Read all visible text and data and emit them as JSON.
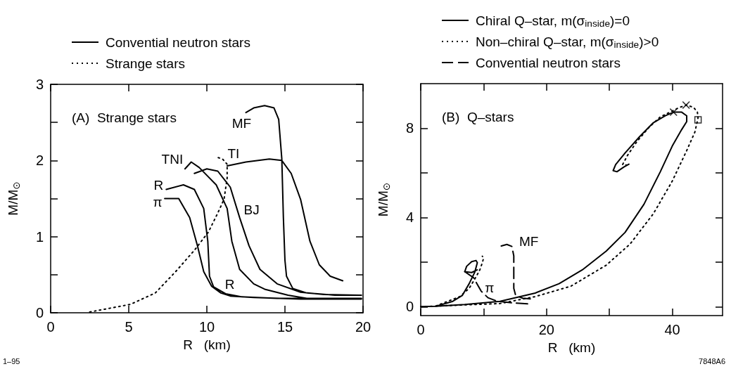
{
  "chart_data": [
    {
      "type": "line",
      "title": "(A)  Strange stars",
      "xlabel": "R   (km)",
      "ylabel": "M/M$_{⊙}$",
      "xlim": [
        0,
        20
      ],
      "ylim": [
        0,
        3
      ],
      "xticks": [
        0,
        5,
        10,
        15,
        20
      ],
      "yticks": [
        0,
        {
          "value": 0.5,
          "label": null
        },
        1,
        {
          "value": 1.5,
          "label": null
        },
        2,
        {
          "value": 2.5,
          "label": null
        },
        3
      ],
      "legend": "top",
      "marker": "none",
      "annotations": [
        "1–95",
        {
          "text": "MF",
          "x": 12.5,
          "y": 2.63
        },
        {
          "text": "TI",
          "x": 11.3,
          "y": 1.93
        },
        {
          "text": "TNI",
          "x": 8.6,
          "y": 1.89
        },
        {
          "text": "R",
          "x": 7.4,
          "y": 1.62
        },
        {
          "text": "π",
          "x": 7.3,
          "y": 1.5
        },
        {
          "text": "BJ",
          "x": 12.1,
          "y": 1.25
        },
        {
          "text": "R",
          "x": 11.2,
          "y": 0.25
        }
      ],
      "series": [
        {
          "name": "Convential neutron stars",
          "color": "#000000",
          "line_style": "solid",
          "x": [
            7.3,
            8.2,
            8.9,
            9.4,
            9.8,
            10.3,
            10.9,
            11.5,
            13,
            16,
            19.9,
            null,
            7.4,
            8.5,
            9.2,
            9.8,
            10.06,
            10.17,
            10.43,
            11.2,
            12.2,
            14.5,
            19.9,
            null,
            8.6,
            9.0,
            9.5,
            10.6,
            11.3,
            11.6,
            12.1,
            13,
            13.7,
            15.2,
            16.4,
            19.9,
            null,
            9.2,
            10,
            10.7,
            11.5,
            12.1,
            12.7,
            13.4,
            14.5,
            16,
            17.5,
            19.9,
            null,
            11.3,
            12.5,
            14,
            14.8,
            15.4,
            16,
            16.6,
            17.2,
            17.9,
            18.7,
            null,
            12.5,
            13,
            13.7,
            14.3,
            14.6,
            14.8,
            14.9,
            15,
            15.1,
            15.5,
            16.4,
            18.2,
            19.9
          ],
          "values": [
            1.5,
            1.5,
            1.25,
            0.88,
            0.54,
            0.35,
            0.26,
            0.22,
            0.2,
            0.18,
            0.18,
            null,
            1.62,
            1.68,
            1.62,
            1.37,
            0.94,
            0.48,
            0.34,
            0.25,
            0.21,
            0.19,
            0.19,
            null,
            1.89,
            1.98,
            1.91,
            1.68,
            1.37,
            0.94,
            0.57,
            0.38,
            0.31,
            0.23,
            0.19,
            0.19,
            null,
            1.83,
            1.89,
            1.86,
            1.65,
            1.25,
            0.88,
            0.57,
            0.38,
            0.27,
            0.24,
            0.23,
            null,
            1.93,
            1.98,
            2.02,
            2.0,
            1.83,
            1.49,
            0.94,
            0.63,
            0.48,
            0.42,
            null,
            2.63,
            2.69,
            2.72,
            2.69,
            2.54,
            2.02,
            1.25,
            0.69,
            0.48,
            0.32,
            0.26,
            0.23,
            0.23
          ]
        },
        {
          "name": "Strange stars",
          "color": "#000000",
          "line_style": "dotted",
          "x": [
            2.5,
            5.1,
            6.7,
            8,
            9.2,
            10.1,
            10.7,
            11.1,
            11.3,
            11.3,
            11,
            10.7
          ],
          "values": [
            0.01,
            0.11,
            0.26,
            0.54,
            0.82,
            1.06,
            1.31,
            1.49,
            1.77,
            1.95,
            2.02,
            2.04
          ]
        }
      ]
    },
    {
      "type": "line",
      "title": "(B)  Q–stars",
      "xlabel": "R   (km)",
      "ylabel": "M/M$_{⊙}$",
      "xlim": [
        0,
        48
      ],
      "ylim": [
        -0.4,
        10
      ],
      "xticks": [
        0,
        {
          "value": 10,
          "label": null
        },
        20,
        {
          "value": 30,
          "label": null
        },
        40
      ],
      "yticks": [
        0,
        {
          "value": 2,
          "label": null
        },
        4,
        {
          "value": 6,
          "label": null
        },
        8
      ],
      "legend": "top",
      "marker": "none",
      "annotations": [
        "7848A6",
        {
          "text": "MF",
          "x": 14.5,
          "y": 2.7
        },
        {
          "text": "π",
          "x": 9.6,
          "y": 0.7
        }
      ],
      "series": [
        {
          "name": "Chiral Q–star, m(σ$_{inside}$)=0",
          "color": "#000000",
          "line_style": "solid",
          "x": [
            2.4,
            5.1,
            6.6,
            7.7,
            8.6,
            9,
            8.8,
            8.1,
            7.3,
            7,
            8.1,
            9,
            null,
            0,
            2.4,
            7,
            12.6,
            18.2,
            22,
            25.7,
            29.5,
            32.5,
            35.5,
            38.1,
            40,
            41.5,
            42.3,
            42.3,
            41.5,
            40.2,
            38.9,
            37,
            34.8,
            32.5,
            31,
            30.6,
            31.2,
            32.3,
            33.1
          ],
          "values": [
            0.02,
            0.24,
            0.5,
            1.03,
            1.55,
            1.97,
            2.07,
            2.02,
            1.81,
            1.57,
            1.53,
            1.65,
            null,
            0,
            0.02,
            0.1,
            0.24,
            0.61,
            1.03,
            1.65,
            2.49,
            3.33,
            4.59,
            6.05,
            7.2,
            7.94,
            8.3,
            8.56,
            8.72,
            8.72,
            8.56,
            8.25,
            7.62,
            6.89,
            6.37,
            6.1,
            6.05,
            6.26,
            6.39
          ]
        },
        {
          "name": "Non–chiral Q–star, m(σ$_{inside}$)>0",
          "color": "#000000",
          "line_style": "dotted",
          "x": [
            2.4,
            6.2,
            7.7,
            8.6,
            9.4,
            9.8,
            10,
            9.8,
            null,
            0,
            12.6,
            18.2,
            23.9,
            29.5,
            33.3,
            37,
            40,
            42.3,
            43.6,
            44.1,
            44,
            43.4,
            42.3,
            41.1,
            40,
            38.1,
            36.3,
            34.4,
            32.9,
            32.1,
            32.7
          ],
          "values": [
            0.03,
            0.45,
            0.82,
            1.24,
            1.65,
            1.97,
            2.18,
            2.26,
            null,
            0,
            0.14,
            0.45,
            0.92,
            1.86,
            2.81,
            4.17,
            5.63,
            7,
            7.83,
            8.46,
            8.72,
            8.93,
            9.04,
            8.93,
            8.77,
            8.51,
            8.04,
            7.41,
            6.79,
            6.37,
            6.35
          ]
        },
        {
          "name": "Convential neutron stars",
          "color": "#000000",
          "line_style": "dashed",
          "x": [
            7,
            8.4,
            9.6,
            10.7,
            12.2,
            14.5,
            17.3,
            null,
            12.8,
            13.7,
            14.5,
            14.8,
            14.8,
            15.1,
            16.2,
            17.5
          ],
          "values": [
            1.57,
            1.3,
            0.7,
            0.4,
            0.24,
            0.17,
            0.12,
            null,
            2.72,
            2.79,
            2.7,
            2.28,
            0.82,
            0.5,
            0.38,
            0.35
          ]
        },
        {
          "type": "scatter",
          "marker": "cross",
          "color": "#000000",
          "x": [
            40.2,
            42.2
          ],
          "values": [
            8.72,
            9.04
          ]
        },
        {
          "type": "scatter",
          "marker": "square",
          "color": "#000000",
          "x": [
            44.1
          ],
          "values": [
            8.38
          ]
        }
      ]
    }
  ]
}
